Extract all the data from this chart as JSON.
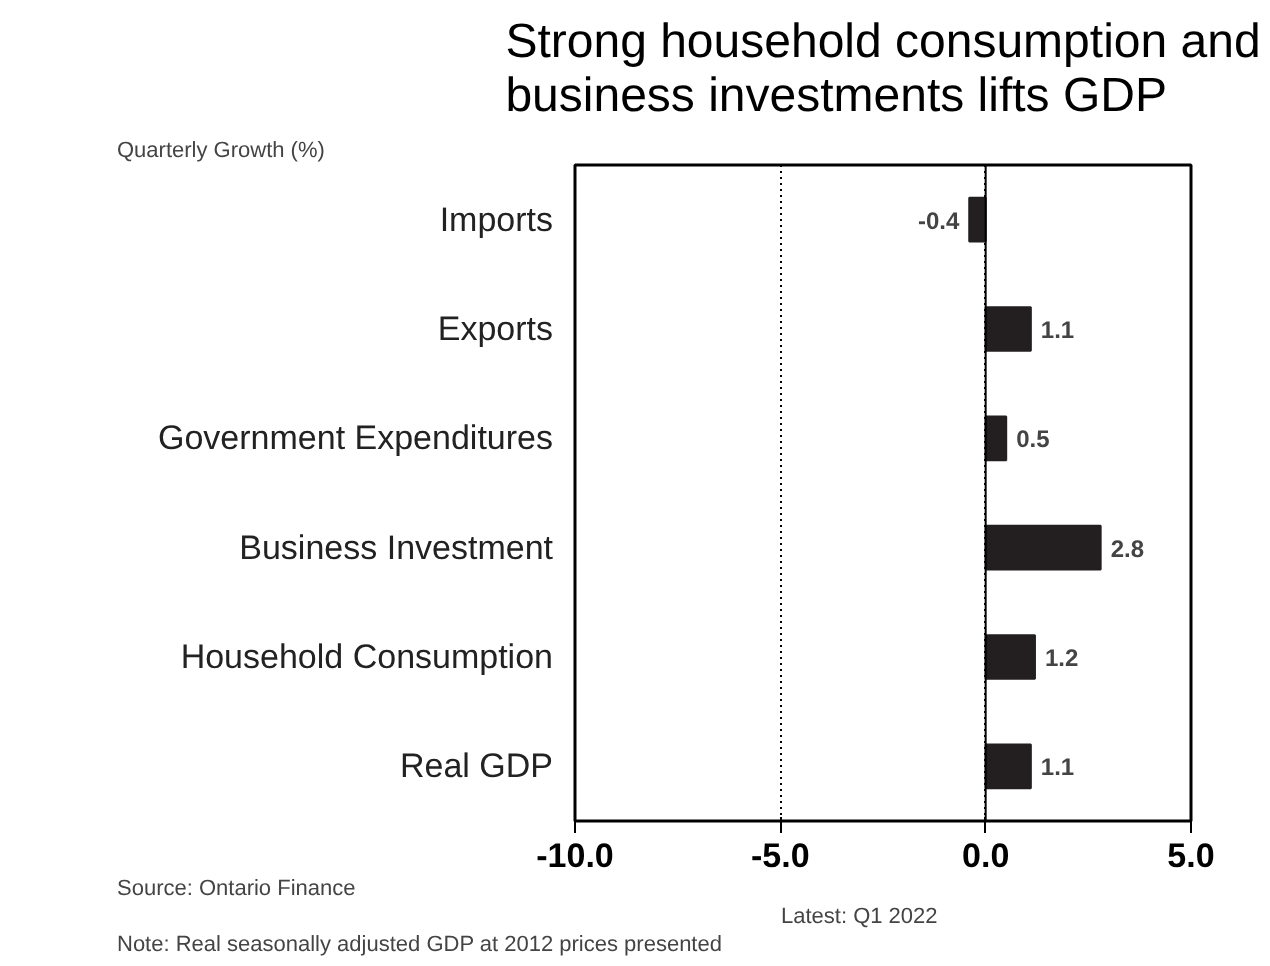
{
  "chart_data": {
    "type": "bar",
    "orientation": "horizontal",
    "title": "Strong household consumption and business investments lifts GDP",
    "xlabel": "Quarterly Growth (%)",
    "categories": [
      "Imports",
      "Exports",
      "Government Expenditures",
      "Business Investment",
      "Household Consumption",
      "Real GDP"
    ],
    "values": [
      -0.4,
      1.1,
      0.5,
      2.8,
      1.2,
      1.1
    ],
    "color": "#231f20",
    "xlim": [
      -10,
      5
    ],
    "xticks": [
      {
        "value": -10,
        "label": "-10.0"
      },
      {
        "value": -5,
        "label": "-5.0"
      },
      {
        "value": 0,
        "label": "0.0"
      },
      {
        "value": 5,
        "label": "5.0"
      }
    ],
    "grid": "x",
    "data_labels": true,
    "annotations": [
      "Source: Ontario Finance",
      "Latest: Q1 2022",
      "Note: Real seasonally adjusted GDP at 2012 prices presented"
    ]
  }
}
